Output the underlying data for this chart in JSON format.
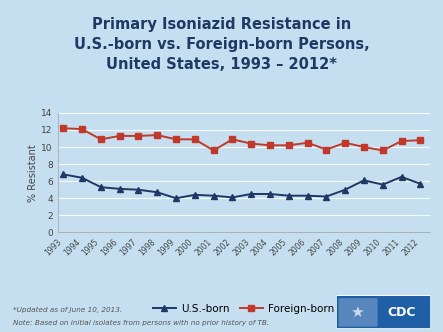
{
  "title": "Primary Isoniazid Resistance in\nU.S.-born vs. Foreign-born Persons,\nUnited States, 1993 – 2012*",
  "years": [
    1993,
    1994,
    1995,
    1996,
    1997,
    1998,
    1999,
    2000,
    2001,
    2002,
    2003,
    2004,
    2005,
    2006,
    2007,
    2008,
    2009,
    2010,
    2011,
    2012
  ],
  "us_born": [
    6.8,
    6.4,
    5.3,
    5.1,
    5.0,
    4.7,
    4.0,
    4.4,
    4.3,
    4.1,
    4.5,
    4.5,
    4.3,
    4.3,
    4.2,
    5.0,
    6.1,
    5.6,
    6.5,
    5.7
  ],
  "foreign_born": [
    12.2,
    12.1,
    10.9,
    11.3,
    11.3,
    11.4,
    10.9,
    10.9,
    9.6,
    10.9,
    10.4,
    10.2,
    10.2,
    10.5,
    9.7,
    10.5,
    10.0,
    9.6,
    10.7,
    10.8
  ],
  "us_born_color": "#1F3864",
  "foreign_born_color": "#C0392B",
  "ylabel": "% Resistant",
  "ylim": [
    0,
    14
  ],
  "yticks": [
    0,
    2,
    4,
    6,
    8,
    10,
    12,
    14
  ],
  "bg_color": "#C5DFF0",
  "footnote1": "*Updated as of June 10, 2013.",
  "footnote2": "Note: Based on initial isolates from persons with no prior history of TB.",
  "legend_us": "U.S.-born",
  "legend_foreign": "Foreign-born",
  "title_color": "#1F3864",
  "title_fontsize": 10.5,
  "cdc_blue": "#1F5FA6"
}
